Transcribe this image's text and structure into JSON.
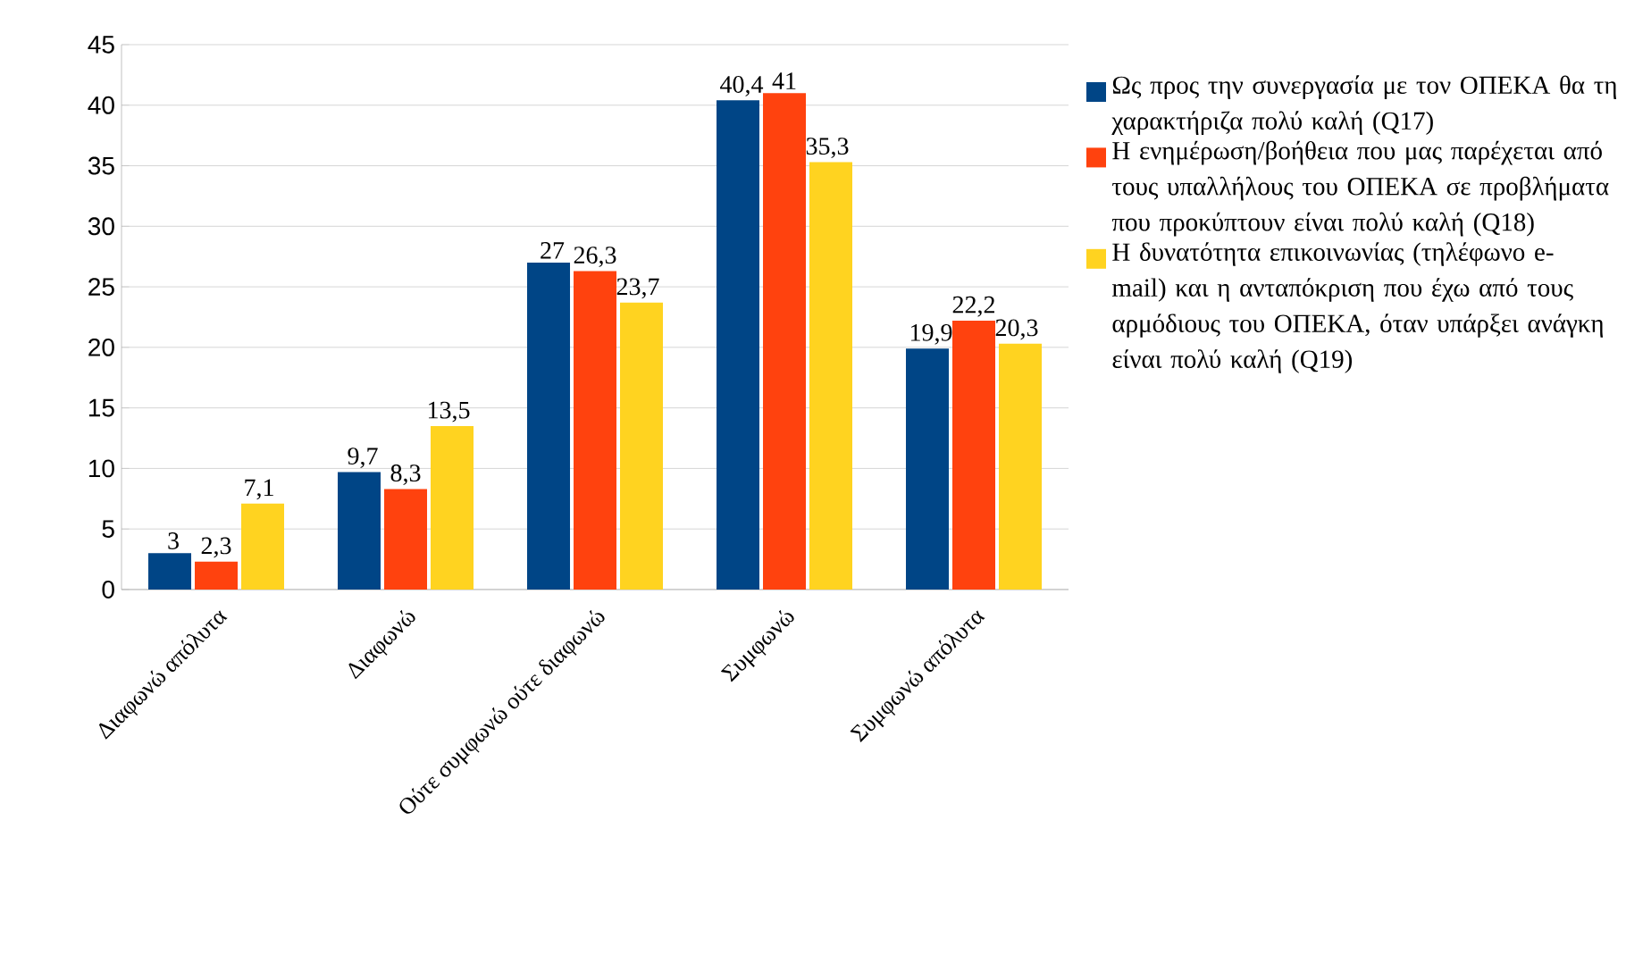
{
  "chart_data": {
    "type": "bar",
    "categories": [
      "Διαφωνώ απόλυτα",
      "Διαφωνώ",
      "Ούτε συμφωνώ ούτε διαφωνώ",
      "Συμφωνώ",
      "Συμφωνώ απόλυτα"
    ],
    "series": [
      {
        "name": "Ως προς την συνεργασία με τον ΟΠΕΚΑ θα τη χαρακτήριζα πολύ καλή (Q17)",
        "color": "#004586",
        "values": [
          3,
          9.7,
          27,
          40.4,
          19.9
        ],
        "value_labels": [
          "3",
          "9,7",
          "27",
          "40,4",
          "19,9"
        ]
      },
      {
        "name": "Η ενημέρωση/βοήθεια που μας παρέχεται από τους υπαλλήλους του ΟΠΕΚΑ σε προβλήματα που προκύπτουν είναι πολύ καλή (Q18)",
        "color": "#ff420e",
        "values": [
          2.3,
          8.3,
          26.3,
          41,
          22.2
        ],
        "value_labels": [
          "2,3",
          "8,3",
          "26,3",
          "41",
          "22,2"
        ]
      },
      {
        "name": "Η δυνατότητα επικοινωνίας (τηλέφωνο e-mail) και η ανταπόκριση που έχω από τους αρμόδιους του ΟΠΕΚΑ, όταν υπάρξει ανάγκη είναι πολύ καλή (Q19)",
        "color": "#ffd320",
        "values": [
          7.1,
          13.5,
          23.7,
          35.3,
          20.3
        ],
        "value_labels": [
          "7,1",
          "13,5",
          "23,7",
          "35,3",
          "20,3"
        ]
      }
    ],
    "ylim": [
      0,
      45
    ],
    "yticks": [
      0,
      5,
      10,
      15,
      20,
      25,
      30,
      35,
      40,
      45
    ],
    "grid": "y",
    "legend": "right"
  }
}
